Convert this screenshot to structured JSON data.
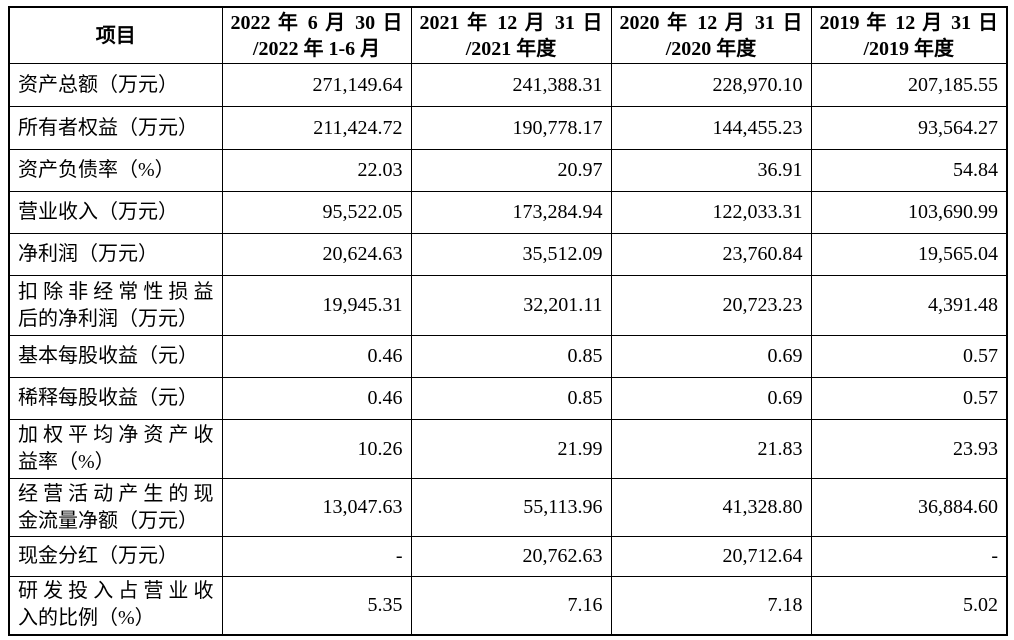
{
  "table": {
    "header": [
      [
        "项目"
      ],
      [
        "2022 年 6 月 30 日",
        "/2022 年 1-6 月"
      ],
      [
        "2021 年 12 月 31 日",
        "/2021 年度"
      ],
      [
        "2020 年 12 月 31 日",
        "/2020 年度"
      ],
      [
        "2019 年 12 月 31 日",
        "/2019 年度"
      ]
    ],
    "rows": [
      {
        "label": [
          "资产总额（万元）"
        ],
        "cells": [
          "271,149.64",
          "241,388.31",
          "228,970.10",
          "207,185.55"
        ]
      },
      {
        "label": [
          "所有者权益（万元）"
        ],
        "cells": [
          "211,424.72",
          "190,778.17",
          "144,455.23",
          "93,564.27"
        ]
      },
      {
        "label": [
          "资产负债率（%）"
        ],
        "cells": [
          "22.03",
          "20.97",
          "36.91",
          "54.84"
        ]
      },
      {
        "label": [
          "营业收入（万元）"
        ],
        "cells": [
          "95,522.05",
          "173,284.94",
          "122,033.31",
          "103,690.99"
        ]
      },
      {
        "label": [
          "净利润（万元）"
        ],
        "cells": [
          "20,624.63",
          "35,512.09",
          "23,760.84",
          "19,565.04"
        ]
      },
      {
        "label": [
          "扣除非经常性损益",
          "后的净利润（万元）"
        ],
        "cells": [
          "19,945.31",
          "32,201.11",
          "20,723.23",
          "4,391.48"
        ]
      },
      {
        "label": [
          "基本每股收益（元）"
        ],
        "cells": [
          "0.46",
          "0.85",
          "0.69",
          "0.57"
        ]
      },
      {
        "label": [
          "稀释每股收益（元）"
        ],
        "cells": [
          "0.46",
          "0.85",
          "0.69",
          "0.57"
        ]
      },
      {
        "label": [
          "加权平均净资产收",
          "益率（%）"
        ],
        "cells": [
          "10.26",
          "21.99",
          "21.83",
          "23.93"
        ]
      },
      {
        "label": [
          "经营活动产生的现",
          "金流量净额（万元）"
        ],
        "cells": [
          "13,047.63",
          "55,113.96",
          "41,328.80",
          "36,884.60"
        ]
      },
      {
        "label": [
          "现金分红（万元）"
        ],
        "cells": [
          "-",
          "20,762.63",
          "20,712.64",
          "-"
        ]
      },
      {
        "label": [
          "研发投入占营业收",
          "入的比例（%）"
        ],
        "cells": [
          "5.35",
          "7.16",
          "7.18",
          "5.02"
        ]
      }
    ]
  }
}
